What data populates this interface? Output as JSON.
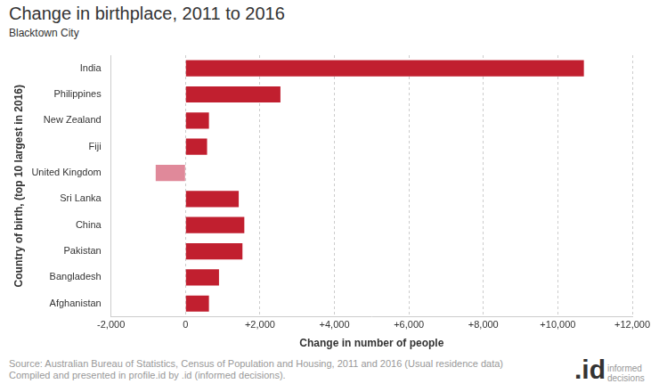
{
  "chart_data": {
    "type": "bar",
    "orientation": "horizontal",
    "title": "Change in birthplace, 2011 to 2016",
    "subtitle": "Blacktown City",
    "x_label": "Change in number of people",
    "y_label": "Country of birth, (top 10 largest in 2016)",
    "categories": [
      "India",
      "Philippines",
      "New Zealand",
      "Fiji",
      "United Kingdom",
      "Sri Lanka",
      "China",
      "Pakistan",
      "Bangladesh",
      "Afghanistan"
    ],
    "values": [
      10700,
      2550,
      630,
      580,
      -800,
      1430,
      1580,
      1530,
      900,
      630
    ],
    "colors": [
      "#c11f2f",
      "#c11f2f",
      "#c11f2f",
      "#c11f2f",
      "#e0899a",
      "#c11f2f",
      "#c11f2f",
      "#c11f2f",
      "#c11f2f",
      "#c11f2f"
    ],
    "xlim": [
      -2000,
      12000
    ],
    "xticks": [
      {
        "value": -2000,
        "label": "-2,000"
      },
      0,
      {
        "value": 2000,
        "label": "+2,000"
      },
      {
        "value": 4000,
        "label": "+4,000"
      },
      {
        "value": 6000,
        "label": "+6,000"
      },
      {
        "value": 8000,
        "label": "+8,000"
      },
      {
        "value": 10000,
        "label": "+10,000"
      },
      {
        "value": 12000,
        "label": "+12,000"
      }
    ],
    "grid": true,
    "source": [
      "Source: Australian Bureau of Statistics, Census of Population and Housing, 2011 and 2016 (Usual residence data)",
      "Compiled and presented in profile.id by .id (informed decisions)."
    ],
    "logo": {
      "mark": ".id",
      "text": "informed decisions"
    }
  }
}
